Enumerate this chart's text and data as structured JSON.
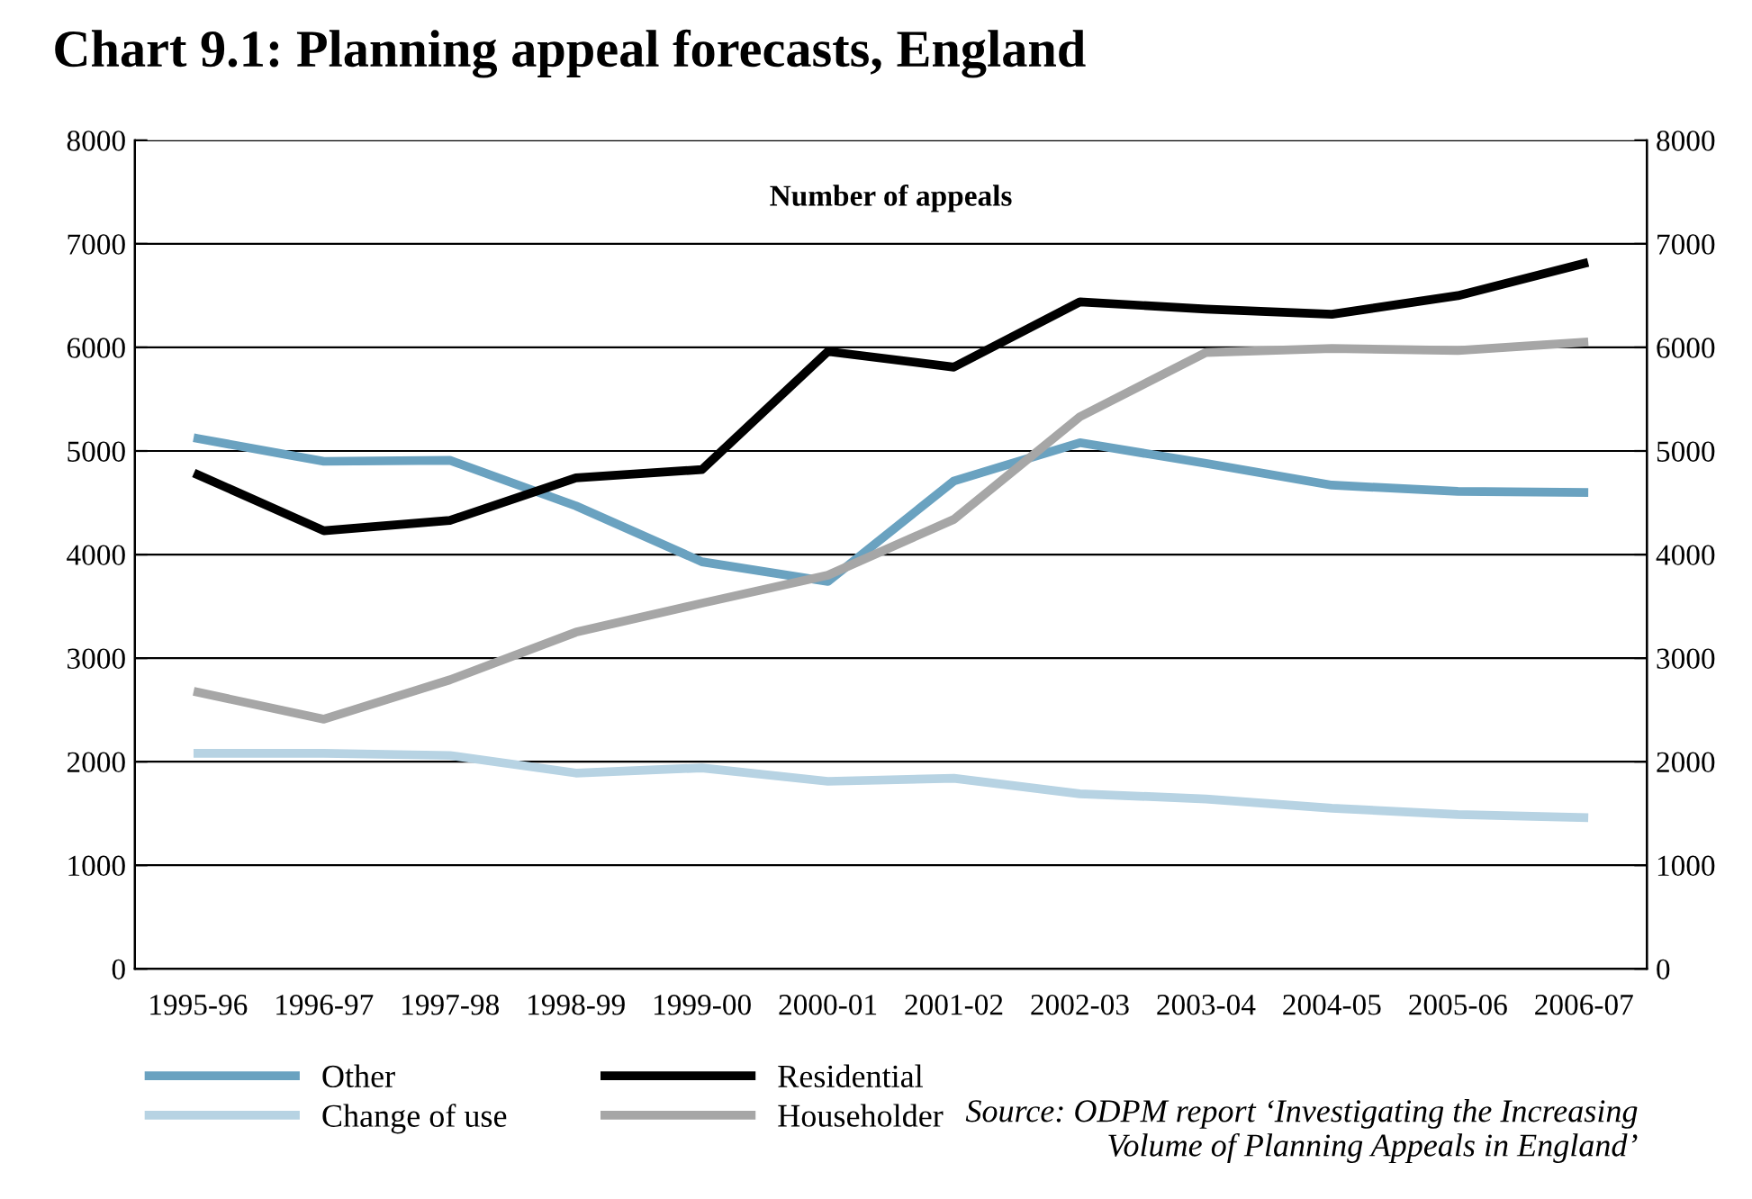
{
  "chart_data": {
    "type": "line",
    "title": "Chart 9.1: Planning appeal forecasts, England",
    "subtitle": "Number of appeals",
    "categories": [
      "1995-96",
      "1996-97",
      "1997-98",
      "1998-99",
      "1999-00",
      "2000-01",
      "2001-02",
      "2002-03",
      "2003-04",
      "2004-05",
      "2005-06",
      "2006-07"
    ],
    "series": [
      {
        "name": "Other",
        "color": "#6aa2c0",
        "values": [
          5120,
          4900,
          4910,
          4470,
          3930,
          3740,
          4710,
          5080,
          4880,
          4670,
          4610,
          4600
        ]
      },
      {
        "name": "Change of use",
        "color": "#b7d3e3",
        "values": [
          2080,
          2080,
          2060,
          1890,
          1940,
          1810,
          1840,
          1690,
          1640,
          1550,
          1490,
          1460
        ]
      },
      {
        "name": "Residential",
        "color": "#000000",
        "values": [
          4770,
          4230,
          4330,
          4740,
          4820,
          5960,
          5810,
          6440,
          6370,
          6320,
          6500,
          6810
        ]
      },
      {
        "name": "Householder",
        "color": "#a6a6a6",
        "values": [
          2670,
          2410,
          2790,
          3250,
          3530,
          3800,
          4340,
          5330,
          5950,
          5990,
          5970,
          6050
        ]
      }
    ],
    "ylim": [
      0,
      8000
    ],
    "yticks": [
      0,
      1000,
      2000,
      3000,
      4000,
      5000,
      6000,
      7000,
      8000
    ],
    "y2lim": [
      0,
      8000
    ],
    "y2ticks": [
      0,
      1000,
      2000,
      3000,
      4000,
      5000,
      6000,
      7000,
      8000
    ],
    "grid": "y",
    "legend": "bottom",
    "marker": "none",
    "line_style": "solid",
    "annotations": [
      "Source: ODPM report ‘Investigating the Increasing\nVolume of Planning Appeals in England’"
    ]
  }
}
